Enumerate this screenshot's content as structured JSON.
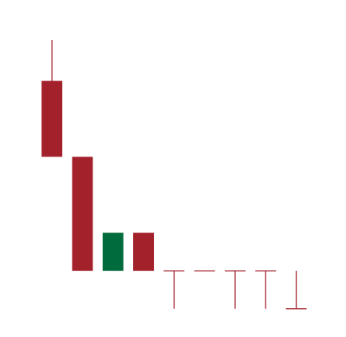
{
  "chart_data": {
    "type": "candlestick",
    "grid": false,
    "legend": "none",
    "colors": {
      "up": "#006b3c",
      "down": "#a3212b"
    },
    "ylim": [
      0,
      100
    ],
    "candles": [
      {
        "open": 80,
        "high": 94,
        "low": 54,
        "close": 54
      },
      {
        "open": 54,
        "high": 54,
        "low": 15,
        "close": 15
      },
      {
        "open": 15,
        "high": 28,
        "low": 15,
        "close": 28
      },
      {
        "open": 28,
        "high": 28,
        "low": 15,
        "close": 15
      },
      {
        "open": 15,
        "high": 15,
        "low": 2,
        "close": 15
      },
      {
        "open": 15,
        "high": 15,
        "low": 15,
        "close": 15
      },
      {
        "open": 15,
        "high": 15,
        "low": 2,
        "close": 15
      },
      {
        "open": 15,
        "high": 15,
        "low": 2,
        "close": 15
      },
      {
        "open": 2,
        "high": 15,
        "low": 2,
        "close": 2
      }
    ]
  }
}
